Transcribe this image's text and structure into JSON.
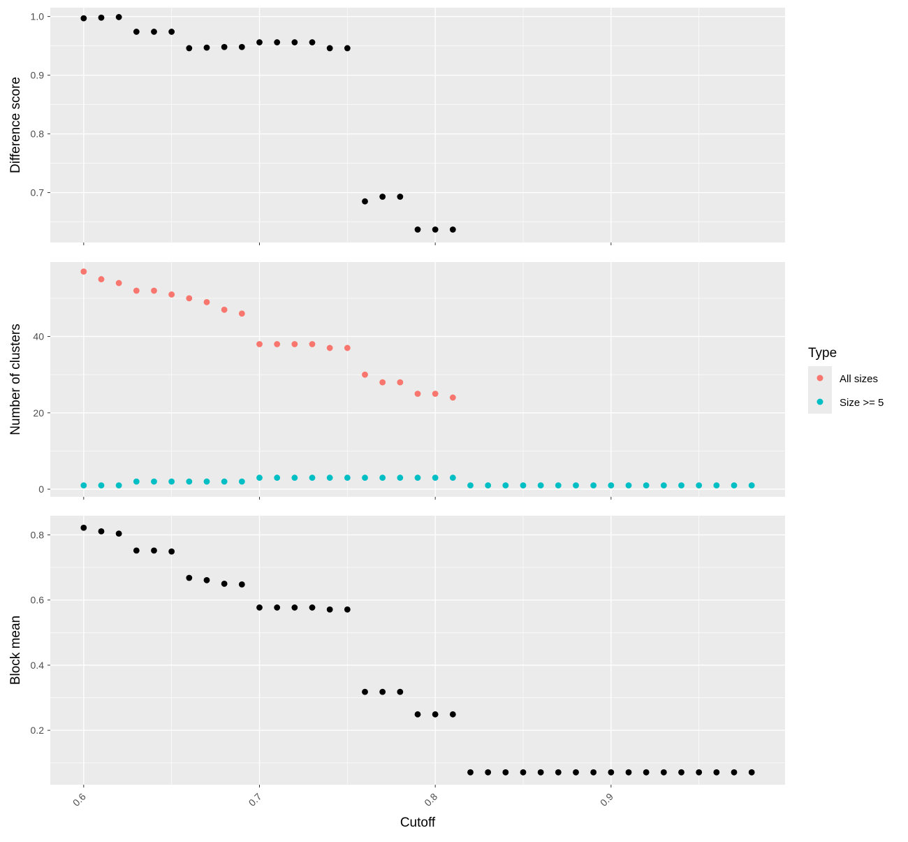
{
  "chart_data": {
    "type": "scatter",
    "xlabel": "Cutoff",
    "x_ticks": [
      0.6,
      0.7,
      0.8,
      0.9
    ],
    "x_tick_labels": [
      "0.6",
      "0.7",
      "0.8",
      "0.9"
    ],
    "xlim": [
      0.581,
      0.999
    ],
    "grid": true,
    "legend": {
      "title": "Type",
      "placement": "right",
      "entries": [
        {
          "label": "All sizes",
          "color": "#F8766D"
        },
        {
          "label": "Size >= 5",
          "color": "#00BFC4"
        }
      ]
    },
    "panels": [
      {
        "id": "difference",
        "ylabel": "Difference score",
        "ylim": [
          0.615,
          1.015
        ],
        "y_ticks": [
          0.7,
          0.8,
          0.9,
          1.0
        ],
        "y_tick_labels": [
          "0.7",
          "0.8",
          "0.9",
          "1.0"
        ],
        "series": [
          {
            "color": "#000000",
            "x": [
              0.6,
              0.61,
              0.62,
              0.63,
              0.64,
              0.65,
              0.66,
              0.67,
              0.68,
              0.69,
              0.7,
              0.71,
              0.72,
              0.73,
              0.74,
              0.75,
              0.76,
              0.77,
              0.78,
              0.79,
              0.8,
              0.81
            ],
            "y": [
              0.997,
              0.998,
              0.999,
              0.974,
              0.974,
              0.974,
              0.946,
              0.947,
              0.948,
              0.948,
              0.956,
              0.956,
              0.956,
              0.956,
              0.946,
              0.946,
              0.685,
              0.693,
              0.693,
              0.637,
              0.637,
              0.637
            ]
          }
        ]
      },
      {
        "id": "clusters",
        "ylabel": "Number of clusters",
        "ylim": [
          -2,
          59.5
        ],
        "y_ticks": [
          0,
          20,
          40
        ],
        "y_tick_labels": [
          "0",
          "20",
          "40"
        ],
        "series": [
          {
            "name": "All sizes",
            "color": "#F8766D",
            "x": [
              0.6,
              0.61,
              0.62,
              0.63,
              0.64,
              0.65,
              0.66,
              0.67,
              0.68,
              0.69,
              0.7,
              0.71,
              0.72,
              0.73,
              0.74,
              0.75,
              0.76,
              0.77,
              0.78,
              0.79,
              0.8,
              0.81
            ],
            "y": [
              57,
              55,
              54,
              52,
              52,
              51,
              50,
              49,
              47,
              46,
              38,
              38,
              38,
              38,
              37,
              37,
              30,
              28,
              28,
              25,
              25,
              24
            ]
          },
          {
            "name": "Size >= 5",
            "color": "#00BFC4",
            "x": [
              0.6,
              0.61,
              0.62,
              0.63,
              0.64,
              0.65,
              0.66,
              0.67,
              0.68,
              0.69,
              0.7,
              0.71,
              0.72,
              0.73,
              0.74,
              0.75,
              0.76,
              0.77,
              0.78,
              0.79,
              0.8,
              0.81,
              0.82,
              0.83,
              0.84,
              0.85,
              0.86,
              0.87,
              0.88,
              0.89,
              0.9,
              0.91,
              0.92,
              0.93,
              0.94,
              0.95,
              0.96,
              0.97,
              0.98
            ],
            "y": [
              1,
              1,
              1,
              2,
              2,
              2,
              2,
              2,
              2,
              2,
              3,
              3,
              3,
              3,
              3,
              3,
              3,
              3,
              3,
              3,
              3,
              3,
              1,
              1,
              1,
              1,
              1,
              1,
              1,
              1,
              1,
              1,
              1,
              1,
              1,
              1,
              1,
              1,
              1
            ]
          }
        ]
      },
      {
        "id": "block",
        "ylabel": "Block mean",
        "ylim": [
          0.033,
          0.859
        ],
        "y_ticks": [
          0.2,
          0.4,
          0.6,
          0.8
        ],
        "y_tick_labels": [
          "0.2",
          "0.4",
          "0.6",
          "0.8"
        ],
        "series": [
          {
            "color": "#000000",
            "x": [
              0.6,
              0.61,
              0.62,
              0.63,
              0.64,
              0.65,
              0.66,
              0.67,
              0.68,
              0.69,
              0.7,
              0.71,
              0.72,
              0.73,
              0.74,
              0.75,
              0.76,
              0.77,
              0.78,
              0.79,
              0.8,
              0.81,
              0.82,
              0.83,
              0.84,
              0.85,
              0.86,
              0.87,
              0.88,
              0.89,
              0.9,
              0.91,
              0.92,
              0.93,
              0.94,
              0.95,
              0.96,
              0.97,
              0.98
            ],
            "y": [
              0.822,
              0.811,
              0.804,
              0.752,
              0.752,
              0.749,
              0.668,
              0.661,
              0.65,
              0.648,
              0.577,
              0.577,
              0.577,
              0.577,
              0.571,
              0.571,
              0.318,
              0.318,
              0.318,
              0.249,
              0.249,
              0.249,
              0.071,
              0.071,
              0.071,
              0.071,
              0.071,
              0.071,
              0.071,
              0.071,
              0.071,
              0.071,
              0.071,
              0.071,
              0.071,
              0.071,
              0.071,
              0.071,
              0.071
            ]
          }
        ]
      }
    ]
  }
}
